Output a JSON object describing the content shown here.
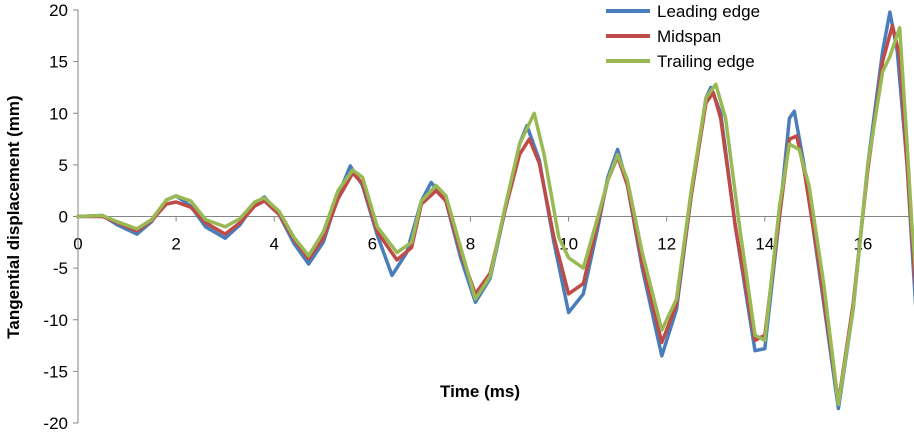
{
  "chart_data": {
    "type": "line",
    "title": "",
    "xlabel": "Time (ms)",
    "ylabel": "Tangential displacement (mm)",
    "xlim": [
      0,
      17
    ],
    "ylim": [
      -20,
      20
    ],
    "x_ticks": [
      "0",
      "2",
      "4",
      "6",
      "8",
      "10",
      "12",
      "14",
      "16"
    ],
    "y_ticks": [
      "-20",
      "-15",
      "-10",
      "-5",
      "0",
      "5",
      "10",
      "15",
      "20"
    ],
    "grid": false,
    "legend_position": "top-right",
    "series": [
      {
        "name": "Leading edge",
        "color": "#4A7EBB",
        "points": [
          [
            0,
            0
          ],
          [
            0.5,
            0.1
          ],
          [
            0.8,
            -0.8
          ],
          [
            1.2,
            -1.7
          ],
          [
            1.5,
            -0.5
          ],
          [
            1.8,
            1.6
          ],
          [
            2.0,
            2.0
          ],
          [
            2.3,
            1.0
          ],
          [
            2.6,
            -1.0
          ],
          [
            3.0,
            -2.1
          ],
          [
            3.3,
            -0.8
          ],
          [
            3.6,
            1.2
          ],
          [
            3.8,
            1.9
          ],
          [
            4.1,
            0.2
          ],
          [
            4.4,
            -2.6
          ],
          [
            4.7,
            -4.6
          ],
          [
            5.0,
            -2.5
          ],
          [
            5.3,
            2.0
          ],
          [
            5.55,
            4.9
          ],
          [
            5.8,
            3.0
          ],
          [
            6.1,
            -1.8
          ],
          [
            6.4,
            -5.7
          ],
          [
            6.7,
            -3.5
          ],
          [
            7.0,
            1.5
          ],
          [
            7.2,
            3.3
          ],
          [
            7.5,
            1.5
          ],
          [
            7.8,
            -4.0
          ],
          [
            8.1,
            -8.3
          ],
          [
            8.4,
            -6.0
          ],
          [
            8.7,
            0.5
          ],
          [
            9.0,
            7.0
          ],
          [
            9.15,
            8.8
          ],
          [
            9.4,
            5.5
          ],
          [
            9.7,
            -2.5
          ],
          [
            10.0,
            -9.3
          ],
          [
            10.3,
            -7.5
          ],
          [
            10.6,
            -1.0
          ],
          [
            10.8,
            3.8
          ],
          [
            11.0,
            6.5
          ],
          [
            11.2,
            3.0
          ],
          [
            11.5,
            -5.0
          ],
          [
            11.9,
            -13.5
          ],
          [
            12.2,
            -9.0
          ],
          [
            12.5,
            2.0
          ],
          [
            12.8,
            11.5
          ],
          [
            12.9,
            12.5
          ],
          [
            13.1,
            10.0
          ],
          [
            13.4,
            -1.0
          ],
          [
            13.8,
            -13.0
          ],
          [
            14.0,
            -12.8
          ],
          [
            14.3,
            0.0
          ],
          [
            14.5,
            9.5
          ],
          [
            14.6,
            10.2
          ],
          [
            14.8,
            5.0
          ],
          [
            15.1,
            -5.0
          ],
          [
            15.5,
            -18.6
          ],
          [
            15.8,
            -9.0
          ],
          [
            16.1,
            5.0
          ],
          [
            16.4,
            16.0
          ],
          [
            16.55,
            19.8
          ],
          [
            16.7,
            16.0
          ],
          [
            16.9,
            5.0
          ],
          [
            17.0,
            -3.0
          ],
          [
            17.15,
            -14.3
          ]
        ]
      },
      {
        "name": "Midspan",
        "color": "#BE4B48",
        "points": [
          [
            0,
            0
          ],
          [
            0.5,
            0.0
          ],
          [
            0.8,
            -0.6
          ],
          [
            1.2,
            -1.4
          ],
          [
            1.5,
            -0.4
          ],
          [
            1.8,
            1.2
          ],
          [
            2.0,
            1.4
          ],
          [
            2.3,
            0.9
          ],
          [
            2.6,
            -0.6
          ],
          [
            3.0,
            -1.7
          ],
          [
            3.3,
            -0.6
          ],
          [
            3.6,
            1.0
          ],
          [
            3.8,
            1.5
          ],
          [
            4.1,
            0.2
          ],
          [
            4.4,
            -2.2
          ],
          [
            4.7,
            -4.1
          ],
          [
            5.0,
            -2.1
          ],
          [
            5.3,
            1.7
          ],
          [
            5.6,
            4.2
          ],
          [
            5.8,
            3.2
          ],
          [
            6.1,
            -1.5
          ],
          [
            6.5,
            -4.2
          ],
          [
            6.8,
            -3.0
          ],
          [
            7.0,
            1.2
          ],
          [
            7.3,
            2.5
          ],
          [
            7.5,
            1.5
          ],
          [
            7.8,
            -3.5
          ],
          [
            8.1,
            -7.5
          ],
          [
            8.4,
            -5.5
          ],
          [
            8.7,
            0.5
          ],
          [
            9.0,
            6.0
          ],
          [
            9.2,
            7.5
          ],
          [
            9.4,
            5.2
          ],
          [
            9.7,
            -2.0
          ],
          [
            10.0,
            -7.5
          ],
          [
            10.3,
            -6.5
          ],
          [
            10.6,
            -0.5
          ],
          [
            10.8,
            3.5
          ],
          [
            11.0,
            5.8
          ],
          [
            11.2,
            3.0
          ],
          [
            11.5,
            -4.5
          ],
          [
            11.9,
            -12.2
          ],
          [
            12.2,
            -8.5
          ],
          [
            12.5,
            2.0
          ],
          [
            12.8,
            11.0
          ],
          [
            12.95,
            12.0
          ],
          [
            13.1,
            9.5
          ],
          [
            13.4,
            -1.0
          ],
          [
            13.8,
            -12.0
          ],
          [
            14.0,
            -11.5
          ],
          [
            14.3,
            0.0
          ],
          [
            14.5,
            7.5
          ],
          [
            14.65,
            7.8
          ],
          [
            14.8,
            4.5
          ],
          [
            15.1,
            -4.5
          ],
          [
            15.5,
            -18.0
          ],
          [
            15.8,
            -8.5
          ],
          [
            16.1,
            4.5
          ],
          [
            16.4,
            15.0
          ],
          [
            16.6,
            18.5
          ],
          [
            16.75,
            15.5
          ],
          [
            16.9,
            5.0
          ],
          [
            17.0,
            -2.0
          ],
          [
            17.15,
            -12.0
          ]
        ]
      },
      {
        "name": "Trailing edge",
        "color": "#98B954",
        "points": [
          [
            0,
            0
          ],
          [
            0.5,
            0.1
          ],
          [
            0.8,
            -0.5
          ],
          [
            1.2,
            -1.2
          ],
          [
            1.5,
            -0.3
          ],
          [
            1.8,
            1.6
          ],
          [
            2.0,
            2.0
          ],
          [
            2.3,
            1.5
          ],
          [
            2.6,
            -0.3
          ],
          [
            3.0,
            -1.0
          ],
          [
            3.3,
            -0.2
          ],
          [
            3.6,
            1.4
          ],
          [
            3.8,
            1.8
          ],
          [
            4.1,
            0.5
          ],
          [
            4.4,
            -2.0
          ],
          [
            4.7,
            -3.8
          ],
          [
            5.0,
            -1.5
          ],
          [
            5.3,
            2.5
          ],
          [
            5.6,
            4.5
          ],
          [
            5.8,
            3.8
          ],
          [
            6.1,
            -1.0
          ],
          [
            6.5,
            -3.5
          ],
          [
            6.8,
            -2.5
          ],
          [
            7.0,
            1.5
          ],
          [
            7.3,
            3.0
          ],
          [
            7.5,
            2.0
          ],
          [
            7.8,
            -3.0
          ],
          [
            8.1,
            -8.0
          ],
          [
            8.4,
            -5.8
          ],
          [
            8.7,
            0.8
          ],
          [
            9.0,
            7.0
          ],
          [
            9.3,
            10.0
          ],
          [
            9.5,
            6.0
          ],
          [
            9.8,
            -2.0
          ],
          [
            10.0,
            -4.0
          ],
          [
            10.3,
            -5.0
          ],
          [
            10.6,
            0.0
          ],
          [
            10.8,
            3.5
          ],
          [
            11.0,
            6.0
          ],
          [
            11.2,
            3.5
          ],
          [
            11.5,
            -3.5
          ],
          [
            11.9,
            -11.0
          ],
          [
            12.2,
            -8.0
          ],
          [
            12.5,
            2.5
          ],
          [
            12.8,
            11.5
          ],
          [
            13.0,
            12.8
          ],
          [
            13.2,
            9.5
          ],
          [
            13.5,
            -1.5
          ],
          [
            13.8,
            -11.5
          ],
          [
            14.0,
            -12.0
          ],
          [
            14.3,
            1.0
          ],
          [
            14.5,
            7.0
          ],
          [
            14.7,
            6.5
          ],
          [
            14.9,
            3.0
          ],
          [
            15.2,
            -6.5
          ],
          [
            15.5,
            -18.2
          ],
          [
            15.8,
            -9.0
          ],
          [
            16.1,
            5.0
          ],
          [
            16.4,
            14.0
          ],
          [
            16.55,
            15.5
          ],
          [
            16.75,
            18.3
          ],
          [
            16.9,
            7.0
          ],
          [
            17.0,
            -1.0
          ],
          [
            17.15,
            -9.5
          ]
        ]
      }
    ]
  }
}
